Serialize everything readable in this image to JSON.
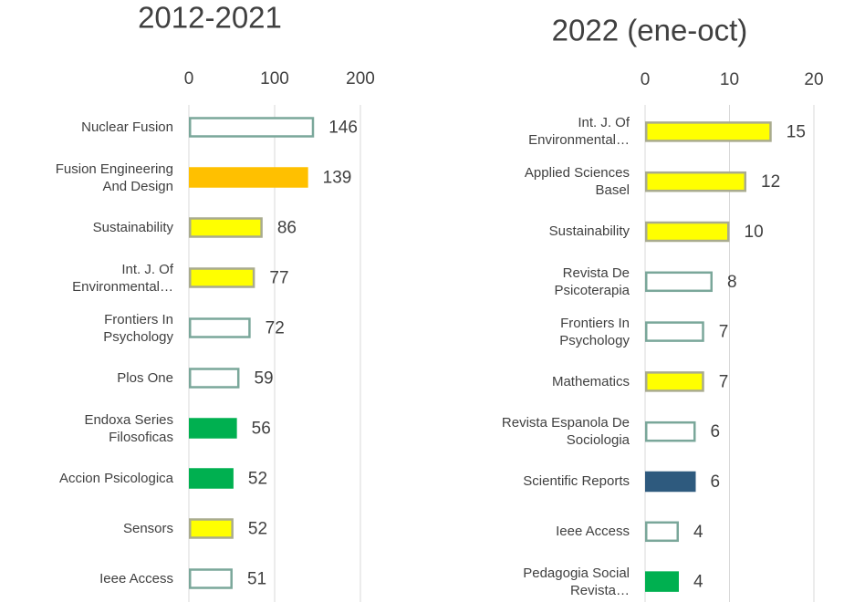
{
  "chart_data": [
    {
      "type": "barh",
      "title": "2012-2021",
      "categories": [
        "Nuclear Fusion",
        "Fusion Engineering\nAnd Design",
        "Sustainability",
        "Int. J. Of\nEnvironmental…",
        "Frontiers In\nPsychology",
        "Plos One",
        "Endoxa Series\nFilosoficas",
        "Accion Psicologica",
        "Sensors",
        "Ieee Access"
      ],
      "values": [
        146,
        139,
        86,
        77,
        72,
        59,
        56,
        52,
        52,
        51
      ],
      "colors": [
        "#ffffff",
        "#ffc000",
        "#ffff00",
        "#ffff00",
        "#ffffff",
        "#ffffff",
        "#00b050",
        "#00b050",
        "#ffff00",
        "#ffffff"
      ],
      "edgecolors": [
        "#7aa79a",
        "#ffc000",
        "#a9ab8e",
        "#a9ab8e",
        "#7aa79a",
        "#7aa79a",
        "#00b050",
        "#00b050",
        "#a9ab8e",
        "#7aa79a"
      ],
      "xlim": [
        0,
        200
      ],
      "xticks": [
        0,
        100,
        200
      ],
      "grid": true
    },
    {
      "type": "barh",
      "title": "2022 (ene-oct)",
      "categories": [
        "Int. J. Of\nEnvironmental…",
        "Applied Sciences\nBasel",
        "Sustainability",
        "Revista De\nPsicoterapia",
        "Frontiers In\nPsychology",
        "Mathematics",
        "Revista Espanola De\nSociologia",
        "Scientific Reports",
        "Ieee Access",
        "Pedagogia Social\nRevista…"
      ],
      "values": [
        15,
        12,
        10,
        8,
        7,
        7,
        6,
        6,
        4,
        4
      ],
      "colors": [
        "#ffff00",
        "#ffff00",
        "#ffff00",
        "#ffffff",
        "#ffffff",
        "#ffff00",
        "#ffffff",
        "#2e5a7e",
        "#ffffff",
        "#00b050"
      ],
      "edgecolors": [
        "#a9ab8e",
        "#a9ab8e",
        "#a9ab8e",
        "#7aa79a",
        "#7aa79a",
        "#a9ab8e",
        "#7aa79a",
        "#2e5a7e",
        "#7aa79a",
        "#00b050"
      ],
      "xlim": [
        0,
        20
      ],
      "xticks": [
        0,
        10,
        20
      ],
      "grid": true
    }
  ]
}
